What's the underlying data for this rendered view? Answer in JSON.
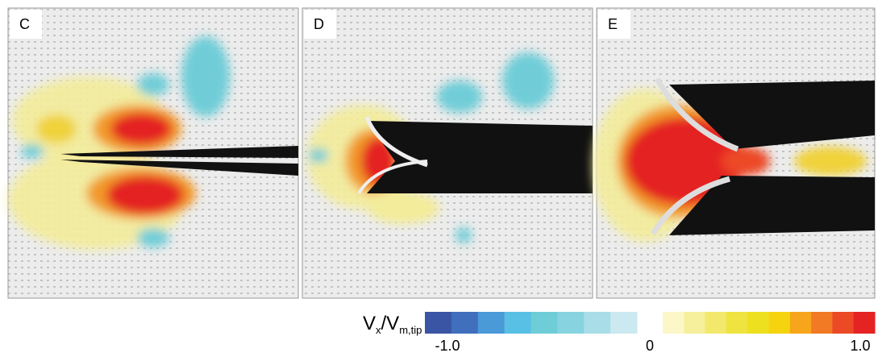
{
  "panels": [
    {
      "label": "C"
    },
    {
      "label": "D"
    },
    {
      "label": "E"
    }
  ],
  "colorbar": {
    "label": {
      "main": "V",
      "sub1": "x",
      "mid": "/V",
      "sub2": "m,tip"
    },
    "range": [
      -1,
      1
    ],
    "ticks": [
      {
        "value": -1,
        "label": "-1.0"
      },
      {
        "value": 0,
        "label": "0"
      },
      {
        "value": 1,
        "label": "1.0"
      }
    ],
    "negative_colors": [
      "#3a55a4",
      "#3f6fbd",
      "#4a9ad8",
      "#58c0e4",
      "#6fcdd8",
      "#87d3e0",
      "#a9dde8",
      "#cbe9f0"
    ],
    "positive_colors": [
      "#fbf7c8",
      "#f6ef9c",
      "#f2e86c",
      "#eee33f",
      "#ede01f",
      "#f5d30f",
      "#f7a51b",
      "#f27a24",
      "#ec4a26",
      "#e42322"
    ]
  }
}
